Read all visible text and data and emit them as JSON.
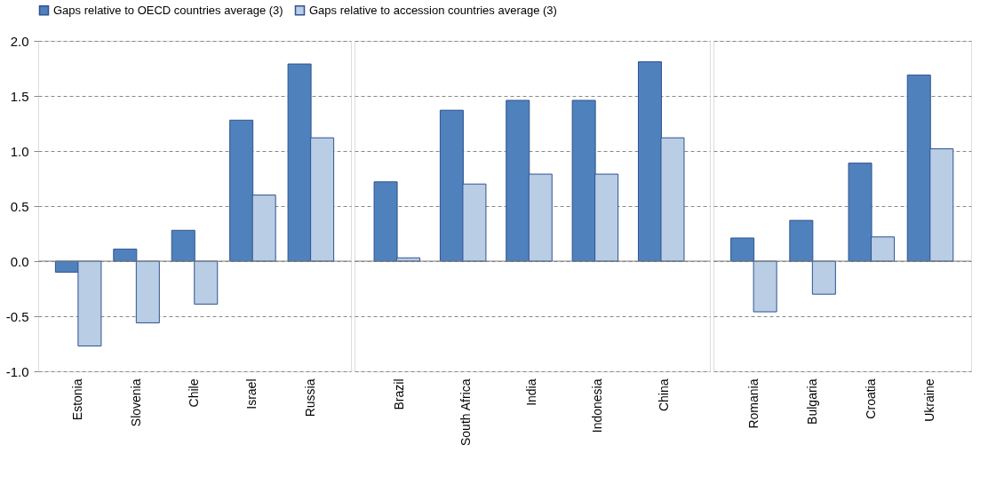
{
  "chart_data": [
    {
      "type": "bar",
      "categories": [
        "Estonia",
        "Slovenia",
        "Chile",
        "Israel",
        "Russia"
      ],
      "series": [
        {
          "name": "Gaps relative to OECD countries average (3)",
          "color": "#4f81bd",
          "values": [
            -0.1,
            0.11,
            0.28,
            1.28,
            1.79
          ]
        },
        {
          "name": "Gaps relative to accession countries average (3)",
          "color": "#b9cde5",
          "values": [
            -0.77,
            -0.56,
            -0.39,
            0.6,
            1.12
          ]
        }
      ],
      "ylim": [
        -1,
        2
      ],
      "yticks": [
        {
          "value": -1,
          "label": "-1.0"
        },
        {
          "value": -0.5,
          "label": "-0.5"
        },
        {
          "value": 0,
          "label": "0.0"
        },
        {
          "value": 0.5,
          "label": "0.5"
        },
        {
          "value": 1,
          "label": "1.0"
        },
        {
          "value": 1.5,
          "label": "1.5"
        },
        {
          "value": 2,
          "label": "2.0"
        }
      ],
      "grid": "y",
      "legend": "top",
      "ref_lines": [
        {
          "axis": "y",
          "value": 0
        }
      ]
    },
    {
      "type": "bar",
      "categories": [
        "Brazil",
        "South Africa",
        "India",
        "Indonesia",
        "China"
      ],
      "series": [
        {
          "name": "Gaps relative to OECD countries average (3)",
          "color": "#4f81bd",
          "values": [
            0.72,
            1.37,
            1.46,
            1.46,
            1.81
          ]
        },
        {
          "name": "Gaps relative to accession countries average (3)",
          "color": "#b9cde5",
          "values": [
            0.03,
            0.7,
            0.79,
            0.79,
            1.12
          ]
        }
      ],
      "ylim": [
        -1,
        2
      ],
      "yticks": [
        -1,
        -0.5,
        0,
        0.5,
        1,
        1.5,
        2
      ],
      "grid": "y",
      "tick_labels": "x",
      "ref_lines": [
        {
          "axis": "y",
          "value": 0
        }
      ]
    },
    {
      "type": "bar",
      "categories": [
        "Romania",
        "Bulgaria",
        "Croatia",
        "Ukraine"
      ],
      "series": [
        {
          "name": "Gaps relative to OECD countries average (3)",
          "color": "#4f81bd",
          "values": [
            0.21,
            0.37,
            0.89,
            1.69
          ]
        },
        {
          "name": "Gaps relative to accession countries average (3)",
          "color": "#b9cde5",
          "values": [
            -0.46,
            -0.3,
            0.22,
            1.02
          ]
        }
      ],
      "ylim": [
        -1,
        2
      ],
      "yticks": [
        -1,
        -0.5,
        0,
        0.5,
        1,
        1.5,
        2
      ],
      "grid": "y",
      "tick_labels": "x",
      "ref_lines": [
        {
          "axis": "y",
          "value": 0
        }
      ]
    }
  ]
}
